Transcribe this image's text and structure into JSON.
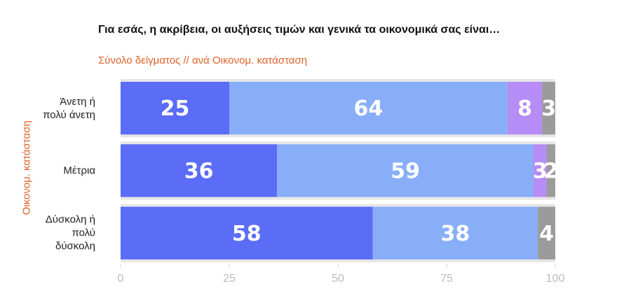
{
  "chart_data": {
    "type": "stacked-barh",
    "title": "Για εσάς, η ακρίβεια, οι αυξήσεις τιμών και γενικά τα οικονομικά σας είναι…",
    "subtitle": "Σύνολο δείγματος // ανά Οικονομ. κατάσταση",
    "y_label": "Οικονομ. κατάσταση",
    "categories": [
      "Άνετη ή πολύ άνετη",
      "Μέτρια",
      "Δύσκολη ή πολύ δύσκολη"
    ],
    "series": [
      {
        "color": "#5b6cf6",
        "values": [
          25,
          36,
          58
        ]
      },
      {
        "color": "#88aef8",
        "values": [
          64,
          59,
          38
        ]
      },
      {
        "color": "#b68cf6",
        "values": [
          8,
          3,
          null
        ]
      },
      {
        "color": "#9b9b9b",
        "values": [
          3,
          2,
          4
        ]
      }
    ],
    "xlim": [
      0,
      100
    ],
    "xticks": [
      0,
      25,
      50,
      75,
      100
    ]
  }
}
